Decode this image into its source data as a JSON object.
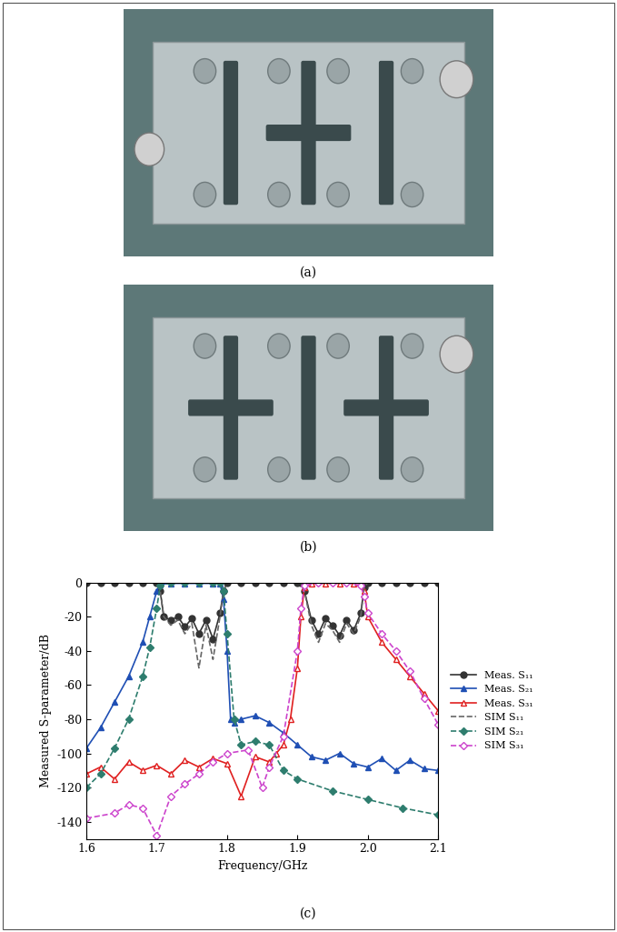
{
  "photos": [
    {
      "caption": "(a)"
    },
    {
      "caption": "(b)"
    }
  ],
  "chart_data": {
    "type": "line",
    "caption": "(c)",
    "x_label": "Frequency/GHz",
    "y_label": "Measured S-parameter/dB",
    "xlim": [
      1.6,
      2.1
    ],
    "xticks": [
      {
        "value": 1.6,
        "label": "1.6"
      },
      {
        "value": 1.7,
        "label": "1.7"
      },
      {
        "value": 1.8,
        "label": "1.8"
      },
      {
        "value": 1.9,
        "label": "1.9"
      },
      {
        "value": 2.0,
        "label": "2.0"
      },
      {
        "value": 2.1,
        "label": "2.1"
      }
    ],
    "ylim": [
      -150,
      0
    ],
    "yticks": [
      -140,
      -120,
      -100,
      -80,
      -60,
      -40,
      -20,
      0
    ],
    "legend": "right",
    "series": [
      {
        "name": "Meas. S₁₁",
        "color": "#333333",
        "marker": "circle",
        "line_style": "solid",
        "x": [
          1.6,
          1.62,
          1.64,
          1.66,
          1.68,
          1.7,
          1.705,
          1.71,
          1.72,
          1.73,
          1.74,
          1.75,
          1.76,
          1.77,
          1.78,
          1.79,
          1.795,
          1.8,
          1.82,
          1.84,
          1.86,
          1.88,
          1.9,
          1.905,
          1.91,
          1.92,
          1.93,
          1.94,
          1.95,
          1.96,
          1.97,
          1.98,
          1.99,
          1.995,
          2.0,
          2.02,
          2.04,
          2.06,
          2.08,
          2.1
        ],
        "values": [
          0,
          0,
          0,
          0,
          0,
          0,
          -5,
          -20,
          -22,
          -20,
          -26,
          -21,
          -30,
          -22,
          -33,
          -18,
          -5,
          0,
          0,
          0,
          0,
          0,
          0,
          0,
          -5,
          -22,
          -30,
          -21,
          -25,
          -31,
          -22,
          -28,
          -18,
          -3,
          0,
          0,
          0,
          0,
          0,
          0
        ]
      },
      {
        "name": "Meas. S₂₁",
        "color": "#1f4fb4",
        "marker": "triangle",
        "line_style": "solid",
        "x": [
          1.6,
          1.62,
          1.64,
          1.66,
          1.68,
          1.69,
          1.7,
          1.705,
          1.72,
          1.74,
          1.76,
          1.78,
          1.79,
          1.795,
          1.8,
          1.805,
          1.81,
          1.82,
          1.84,
          1.86,
          1.88,
          1.9,
          1.92,
          1.94,
          1.96,
          1.98,
          2.0,
          2.02,
          2.04,
          2.06,
          2.08,
          2.1
        ],
        "values": [
          -97,
          -85,
          -70,
          -55,
          -35,
          -20,
          -5,
          -1,
          -0.5,
          -0.5,
          -0.5,
          -0.5,
          -0.5,
          -10,
          -40,
          -80,
          -82,
          -80,
          -78,
          -82,
          -88,
          -95,
          -102,
          -104,
          -100,
          -106,
          -108,
          -103,
          -110,
          -104,
          -109,
          -110
        ]
      },
      {
        "name": "Meas. S₃₁",
        "color": "#e02020",
        "marker": "triangle_open",
        "line_style": "solid",
        "x": [
          1.6,
          1.62,
          1.64,
          1.66,
          1.68,
          1.7,
          1.72,
          1.74,
          1.76,
          1.78,
          1.8,
          1.82,
          1.84,
          1.86,
          1.87,
          1.88,
          1.89,
          1.9,
          1.905,
          1.91,
          1.92,
          1.94,
          1.96,
          1.98,
          1.99,
          1.995,
          2.0,
          2.02,
          2.04,
          2.06,
          2.08,
          2.1
        ],
        "values": [
          -112,
          -108,
          -115,
          -105,
          -110,
          -107,
          -112,
          -104,
          -108,
          -103,
          -106,
          -125,
          -102,
          -105,
          -100,
          -95,
          -80,
          -50,
          -20,
          -3,
          -0.5,
          -0.5,
          -0.5,
          -0.5,
          -0.5,
          -5,
          -20,
          -35,
          -45,
          -55,
          -65,
          -75
        ]
      },
      {
        "name": "SIM S₁₁",
        "color": "#666666",
        "marker": "none",
        "line_style": "dashed",
        "x": [
          1.6,
          1.7,
          1.705,
          1.71,
          1.72,
          1.73,
          1.74,
          1.75,
          1.76,
          1.77,
          1.78,
          1.79,
          1.795,
          1.8,
          1.9,
          1.905,
          1.91,
          1.92,
          1.93,
          1.94,
          1.95,
          1.96,
          1.97,
          1.98,
          1.99,
          1.995,
          2.0,
          2.1
        ],
        "values": [
          0,
          0,
          -5,
          -20,
          -25,
          -22,
          -30,
          -24,
          -50,
          -25,
          -45,
          -20,
          -5,
          0,
          0,
          0,
          -5,
          -25,
          -35,
          -24,
          -28,
          -35,
          -24,
          -30,
          -20,
          -3,
          0,
          0
        ]
      },
      {
        "name": "SIM S₂₁",
        "color": "#2e7d6e",
        "marker": "diamond",
        "line_style": "dashed",
        "x": [
          1.6,
          1.62,
          1.64,
          1.66,
          1.68,
          1.69,
          1.7,
          1.705,
          1.72,
          1.74,
          1.76,
          1.78,
          1.79,
          1.795,
          1.8,
          1.81,
          1.82,
          1.84,
          1.86,
          1.88,
          1.9,
          1.95,
          2.0,
          2.05,
          2.1
        ],
        "values": [
          -120,
          -112,
          -97,
          -80,
          -55,
          -38,
          -15,
          -2,
          0,
          0,
          0,
          0,
          0,
          -5,
          -30,
          -80,
          -95,
          -93,
          -95,
          -110,
          -115,
          -122,
          -127,
          -132,
          -136
        ]
      },
      {
        "name": "SIM S₃₁",
        "color": "#cc44cc",
        "marker": "diamond_open",
        "line_style": "dashed",
        "x": [
          1.6,
          1.64,
          1.66,
          1.68,
          1.7,
          1.72,
          1.74,
          1.76,
          1.78,
          1.8,
          1.83,
          1.85,
          1.86,
          1.88,
          1.9,
          1.905,
          1.91,
          1.93,
          1.95,
          1.97,
          1.99,
          1.995,
          2.0,
          2.02,
          2.04,
          2.06,
          2.08,
          2.1
        ],
        "values": [
          -138,
          -135,
          -130,
          -132,
          -148,
          -125,
          -118,
          -112,
          -105,
          -100,
          -98,
          -120,
          -108,
          -90,
          -40,
          -15,
          -2,
          0,
          0,
          0,
          -2,
          -8,
          -18,
          -30,
          -40,
          -52,
          -68,
          -83
        ]
      }
    ]
  }
}
